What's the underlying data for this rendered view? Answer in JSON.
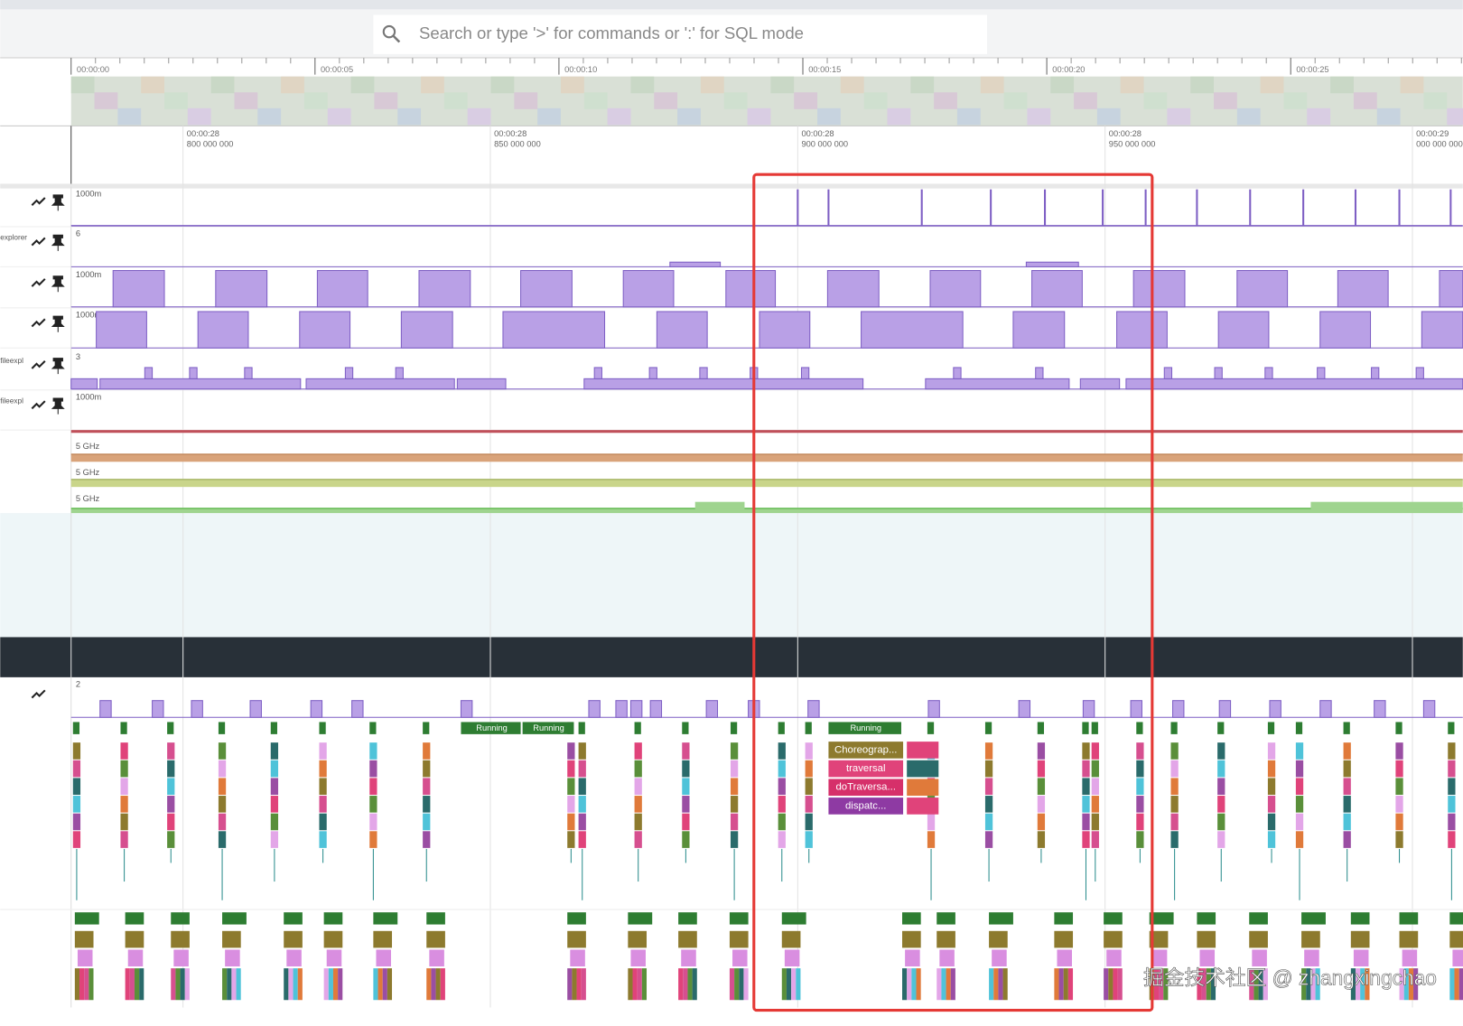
{
  "search": {
    "placeholder": "Search or type '>' for commands or ':' for SQL mode"
  },
  "overview": {
    "ticks": [
      "00:00:00",
      "00:00:05",
      "00:00:10",
      "00:00:15",
      "00:00:20",
      "00:00:25"
    ]
  },
  "ruler": {
    "ticks": [
      {
        "time": "00:00:28",
        "ns": "800 000 000"
      },
      {
        "time": "00:00:28",
        "ns": "850 000 000"
      },
      {
        "time": "00:00:28",
        "ns": "900 000 000"
      },
      {
        "time": "00:00:28",
        "ns": "950 000 000"
      },
      {
        "time": "00:00:29",
        "ns": "000 000 000"
      }
    ]
  },
  "tracks": [
    {
      "name": "",
      "scale": "1000m"
    },
    {
      "name": "explorer",
      "scale": "6"
    },
    {
      "name": "",
      "scale": "1000m"
    },
    {
      "name": "",
      "scale": "1000m"
    },
    {
      "name": "fileexpl",
      "scale": "3"
    },
    {
      "name": "fileexpl",
      "scale": "1000m"
    }
  ],
  "cpu_freq": [
    "5 GHz",
    "5 GHz",
    "5 GHz"
  ],
  "thread_track": {
    "scale": "2"
  },
  "slices": {
    "running": [
      "Running",
      "Running",
      "Running"
    ],
    "stack": [
      "Choreograp...",
      "traversal",
      "doTraversa...",
      "dispatc..."
    ]
  },
  "watermark": "掘金技术社区 @ zhangxingchao"
}
